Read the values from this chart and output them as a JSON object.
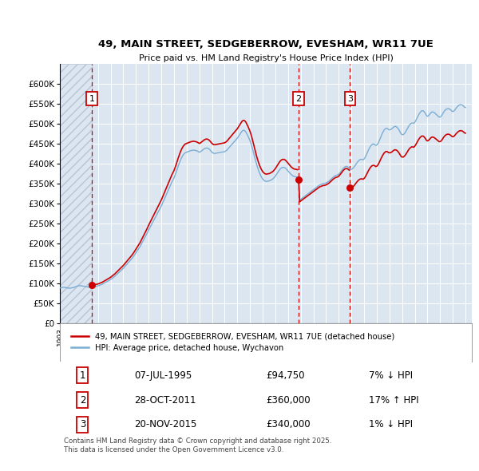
{
  "title": "49, MAIN STREET, SEDGEBERROW, EVESHAM, WR11 7UE",
  "subtitle": "Price paid vs. HM Land Registry's House Price Index (HPI)",
  "ylim": [
    0,
    650000
  ],
  "yticks": [
    0,
    50000,
    100000,
    150000,
    200000,
    250000,
    300000,
    350000,
    400000,
    450000,
    500000,
    550000,
    600000
  ],
  "ytick_labels": [
    "£0",
    "£50K",
    "£100K",
    "£150K",
    "£200K",
    "£250K",
    "£300K",
    "£350K",
    "£400K",
    "£450K",
    "£500K",
    "£550K",
    "£600K"
  ],
  "xlim_start": 1993.0,
  "xlim_end": 2025.5,
  "hpi_color": "#7aadd4",
  "price_color": "#cc0000",
  "plot_bg": "#dce6f1",
  "hatch_color": "#b8c4d4",
  "grid_color": "#ffffff",
  "vline_color": "#cc0000",
  "sale_points": [
    {
      "year": 1995.52,
      "price": 94750,
      "label": "1"
    },
    {
      "year": 2011.83,
      "price": 360000,
      "label": "2"
    },
    {
      "year": 2015.89,
      "price": 340000,
      "label": "3"
    }
  ],
  "legend_line1": "49, MAIN STREET, SEDGEBERROW, EVESHAM, WR11 7UE (detached house)",
  "legend_line2": "HPI: Average price, detached house, Wychavon",
  "table_rows": [
    {
      "num": "1",
      "date": "07-JUL-1995",
      "price": "£94,750",
      "pct": "7% ↓ HPI"
    },
    {
      "num": "2",
      "date": "28-OCT-2011",
      "price": "£360,000",
      "pct": "17% ↑ HPI"
    },
    {
      "num": "3",
      "date": "20-NOV-2015",
      "price": "£340,000",
      "pct": "1% ↓ HPI"
    }
  ],
  "footnote": "Contains HM Land Registry data © Crown copyright and database right 2025.\nThis data is licensed under the Open Government Licence v3.0.",
  "hpi_x": [
    1993.0,
    1993.083,
    1993.167,
    1993.25,
    1993.333,
    1993.417,
    1993.5,
    1993.583,
    1993.667,
    1993.75,
    1993.833,
    1993.917,
    1994.0,
    1994.083,
    1994.167,
    1994.25,
    1994.333,
    1994.417,
    1994.5,
    1994.583,
    1994.667,
    1994.75,
    1994.833,
    1994.917,
    1995.0,
    1995.083,
    1995.167,
    1995.25,
    1995.333,
    1995.417,
    1995.5,
    1995.583,
    1995.667,
    1995.75,
    1995.833,
    1995.917,
    1996.0,
    1996.083,
    1996.167,
    1996.25,
    1996.333,
    1996.417,
    1996.5,
    1996.583,
    1996.667,
    1996.75,
    1996.833,
    1996.917,
    1997.0,
    1997.083,
    1997.167,
    1997.25,
    1997.333,
    1997.417,
    1997.5,
    1997.583,
    1997.667,
    1997.75,
    1997.833,
    1997.917,
    1998.0,
    1998.083,
    1998.167,
    1998.25,
    1998.333,
    1998.417,
    1998.5,
    1998.583,
    1998.667,
    1998.75,
    1998.833,
    1998.917,
    1999.0,
    1999.083,
    1999.167,
    1999.25,
    1999.333,
    1999.417,
    1999.5,
    1999.583,
    1999.667,
    1999.75,
    1999.833,
    1999.917,
    2000.0,
    2000.083,
    2000.167,
    2000.25,
    2000.333,
    2000.417,
    2000.5,
    2000.583,
    2000.667,
    2000.75,
    2000.833,
    2000.917,
    2001.0,
    2001.083,
    2001.167,
    2001.25,
    2001.333,
    2001.417,
    2001.5,
    2001.583,
    2001.667,
    2001.75,
    2001.833,
    2001.917,
    2002.0,
    2002.083,
    2002.167,
    2002.25,
    2002.333,
    2002.417,
    2002.5,
    2002.583,
    2002.667,
    2002.75,
    2002.833,
    2002.917,
    2003.0,
    2003.083,
    2003.167,
    2003.25,
    2003.333,
    2003.417,
    2003.5,
    2003.583,
    2003.667,
    2003.75,
    2003.833,
    2003.917,
    2004.0,
    2004.083,
    2004.167,
    2004.25,
    2004.333,
    2004.417,
    2004.5,
    2004.583,
    2004.667,
    2004.75,
    2004.833,
    2004.917,
    2005.0,
    2005.083,
    2005.167,
    2005.25,
    2005.333,
    2005.417,
    2005.5,
    2005.583,
    2005.667,
    2005.75,
    2005.833,
    2005.917,
    2006.0,
    2006.083,
    2006.167,
    2006.25,
    2006.333,
    2006.417,
    2006.5,
    2006.583,
    2006.667,
    2006.75,
    2006.833,
    2006.917,
    2007.0,
    2007.083,
    2007.167,
    2007.25,
    2007.333,
    2007.417,
    2007.5,
    2007.583,
    2007.667,
    2007.75,
    2007.833,
    2007.917,
    2008.0,
    2008.083,
    2008.167,
    2008.25,
    2008.333,
    2008.417,
    2008.5,
    2008.583,
    2008.667,
    2008.75,
    2008.833,
    2008.917,
    2009.0,
    2009.083,
    2009.167,
    2009.25,
    2009.333,
    2009.417,
    2009.5,
    2009.583,
    2009.667,
    2009.75,
    2009.833,
    2009.917,
    2010.0,
    2010.083,
    2010.167,
    2010.25,
    2010.333,
    2010.417,
    2010.5,
    2010.583,
    2010.667,
    2010.75,
    2010.833,
    2010.917,
    2011.0,
    2011.083,
    2011.167,
    2011.25,
    2011.333,
    2011.417,
    2011.5,
    2011.583,
    2011.667,
    2011.75,
    2011.833,
    2011.917,
    2012.0,
    2012.083,
    2012.167,
    2012.25,
    2012.333,
    2012.417,
    2012.5,
    2012.583,
    2012.667,
    2012.75,
    2012.833,
    2012.917,
    2013.0,
    2013.083,
    2013.167,
    2013.25,
    2013.333,
    2013.417,
    2013.5,
    2013.583,
    2013.667,
    2013.75,
    2013.833,
    2013.917,
    2014.0,
    2014.083,
    2014.167,
    2014.25,
    2014.333,
    2014.417,
    2014.5,
    2014.583,
    2014.667,
    2014.75,
    2014.833,
    2014.917,
    2015.0,
    2015.083,
    2015.167,
    2015.25,
    2015.333,
    2015.417,
    2015.5,
    2015.583,
    2015.667,
    2015.75,
    2015.833,
    2015.917,
    2016.0,
    2016.083,
    2016.167,
    2016.25,
    2016.333,
    2016.417,
    2016.5,
    2016.583,
    2016.667,
    2016.75,
    2016.833,
    2016.917,
    2017.0,
    2017.083,
    2017.167,
    2017.25,
    2017.333,
    2017.417,
    2017.5,
    2017.583,
    2017.667,
    2017.75,
    2017.833,
    2017.917,
    2018.0,
    2018.083,
    2018.167,
    2018.25,
    2018.333,
    2018.417,
    2018.5,
    2018.583,
    2018.667,
    2018.75,
    2018.833,
    2018.917,
    2019.0,
    2019.083,
    2019.167,
    2019.25,
    2019.333,
    2019.417,
    2019.5,
    2019.583,
    2019.667,
    2019.75,
    2019.833,
    2019.917,
    2020.0,
    2020.083,
    2020.167,
    2020.25,
    2020.333,
    2020.417,
    2020.5,
    2020.583,
    2020.667,
    2020.75,
    2020.833,
    2020.917,
    2021.0,
    2021.083,
    2021.167,
    2021.25,
    2021.333,
    2021.417,
    2021.5,
    2021.583,
    2021.667,
    2021.75,
    2021.833,
    2021.917,
    2022.0,
    2022.083,
    2022.167,
    2022.25,
    2022.333,
    2022.417,
    2022.5,
    2022.583,
    2022.667,
    2022.75,
    2022.833,
    2022.917,
    2023.0,
    2023.083,
    2023.167,
    2023.25,
    2023.333,
    2023.417,
    2023.5,
    2023.583,
    2023.667,
    2023.75,
    2023.833,
    2023.917,
    2024.0,
    2024.083,
    2024.167,
    2024.25,
    2024.333,
    2024.417,
    2024.5,
    2024.583,
    2024.667,
    2024.75,
    2024.833,
    2024.917,
    2025.0
  ],
  "hpi_y": [
    88000,
    88500,
    89000,
    89500,
    89500,
    89000,
    88500,
    88000,
    87500,
    87500,
    87500,
    88000,
    88500,
    89000,
    90000,
    91000,
    92000,
    93000,
    93500,
    93500,
    93500,
    93000,
    92500,
    92000,
    91500,
    91000,
    90500,
    90000,
    89500,
    89500,
    90000,
    90500,
    91000,
    91500,
    92000,
    92500,
    93000,
    94000,
    95000,
    96000,
    97000,
    98500,
    100000,
    101500,
    103000,
    104500,
    106000,
    107500,
    109000,
    111000,
    113000,
    115000,
    117000,
    119500,
    122000,
    124500,
    127000,
    129500,
    132000,
    134500,
    137000,
    140000,
    143000,
    146000,
    149000,
    152000,
    155000,
    158000,
    161000,
    164500,
    168000,
    172000,
    176000,
    180000,
    184000,
    188000,
    192000,
    197000,
    202000,
    207000,
    212000,
    217000,
    222000,
    227500,
    233000,
    238000,
    243000,
    248000,
    253000,
    258000,
    263000,
    268000,
    273000,
    278000,
    283000,
    288000,
    293000,
    299000,
    305000,
    311000,
    317000,
    323000,
    329000,
    335000,
    341000,
    347000,
    353000,
    358000,
    363000,
    370000,
    377000,
    385000,
    393000,
    400000,
    407000,
    413000,
    418000,
    422000,
    425000,
    427000,
    428000,
    429000,
    430000,
    431000,
    432000,
    432500,
    433000,
    433000,
    432500,
    432000,
    431000,
    429500,
    428000,
    429000,
    431000,
    433000,
    435000,
    437000,
    438000,
    438500,
    438000,
    436500,
    434000,
    431000,
    428000,
    426000,
    425000,
    425000,
    425500,
    426000,
    426500,
    427000,
    427500,
    428000,
    428500,
    429000,
    429500,
    431000,
    433000,
    436000,
    439000,
    442000,
    445000,
    448000,
    451000,
    454000,
    457000,
    460000,
    463000,
    467000,
    471000,
    475000,
    479000,
    482000,
    483000,
    482000,
    479000,
    474000,
    469000,
    463000,
    457000,
    449000,
    440000,
    430000,
    420000,
    410000,
    400000,
    391000,
    383000,
    376000,
    370000,
    365000,
    361000,
    358000,
    356000,
    355000,
    355000,
    355500,
    356000,
    357000,
    358500,
    360000,
    362000,
    365000,
    368000,
    372000,
    376000,
    380000,
    384000,
    387000,
    389000,
    390000,
    390000,
    389000,
    387000,
    384000,
    381000,
    378000,
    375000,
    372000,
    370000,
    368000,
    367000,
    366500,
    366000,
    365500,
    365000,
    308000,
    310000,
    312000,
    314000,
    316000,
    318000,
    320000,
    322000,
    324000,
    326000,
    328000,
    330000,
    332000,
    334000,
    336000,
    338000,
    340000,
    342000,
    344000,
    346000,
    347000,
    348000,
    349000,
    349500,
    350000,
    351000,
    352500,
    354000,
    356000,
    358500,
    361000,
    363500,
    366000,
    368000,
    369500,
    370500,
    371000,
    373000,
    376000,
    379500,
    383000,
    386500,
    389500,
    391500,
    392500,
    392000,
    390500,
    388000,
    385000,
    385000,
    386500,
    389000,
    392500,
    396500,
    400500,
    404000,
    407000,
    409000,
    410000,
    410000,
    409000,
    411000,
    415000,
    420500,
    426500,
    432500,
    438000,
    442500,
    446000,
    448000,
    448500,
    447500,
    445000,
    446000,
    449000,
    454500,
    461000,
    467500,
    473500,
    479000,
    483500,
    486500,
    488000,
    487500,
    485000,
    484000,
    484500,
    486000,
    488500,
    491000,
    492500,
    492500,
    491000,
    488000,
    484000,
    479000,
    474000,
    472000,
    472000,
    474000,
    477500,
    482000,
    487000,
    492000,
    496000,
    499000,
    501000,
    501000,
    500000,
    503000,
    507500,
    513000,
    518500,
    523500,
    527500,
    530500,
    532000,
    531500,
    529000,
    525000,
    520000,
    518000,
    519500,
    522500,
    526000,
    528500,
    529000,
    528000,
    526000,
    523500,
    521000,
    518500,
    516000,
    516000,
    518000,
    522000,
    527000,
    531000,
    534000,
    536000,
    537000,
    537000,
    536000,
    534000,
    531000,
    530000,
    531000,
    534000,
    538000,
    541000,
    544000,
    546000,
    547000,
    547000,
    546000,
    544000,
    541000,
    540000
  ]
}
